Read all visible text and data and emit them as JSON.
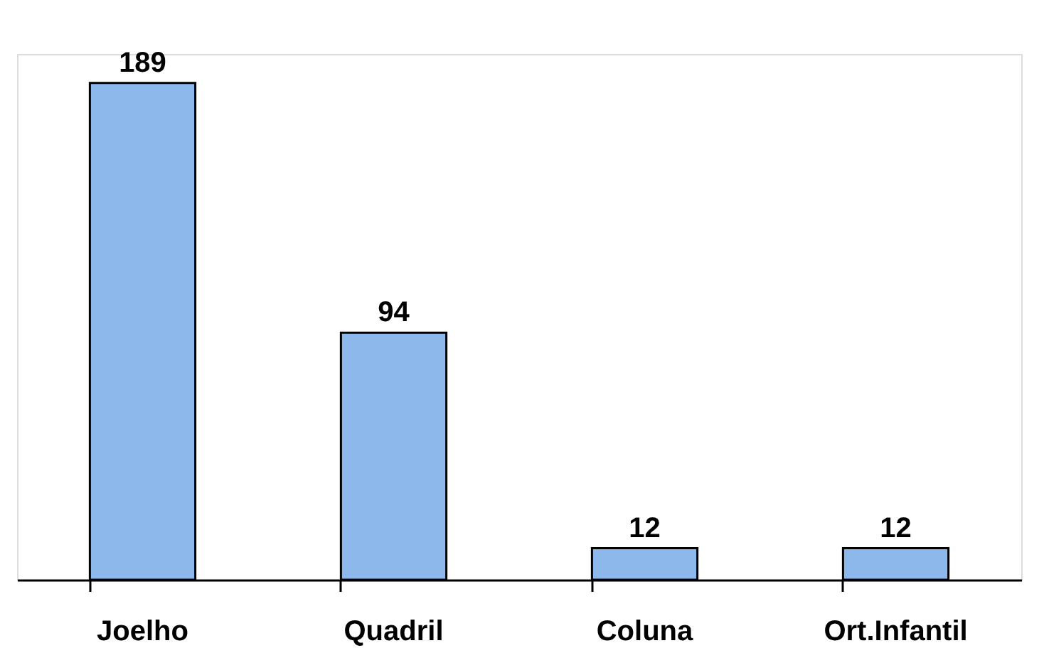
{
  "chart_data": {
    "type": "bar",
    "categories": [
      "Joelho",
      "Quadril",
      "Coluna",
      "Ort.Infantil"
    ],
    "values": [
      189,
      94,
      12,
      12
    ],
    "color": "#8db8ec",
    "data_labels": true
  }
}
